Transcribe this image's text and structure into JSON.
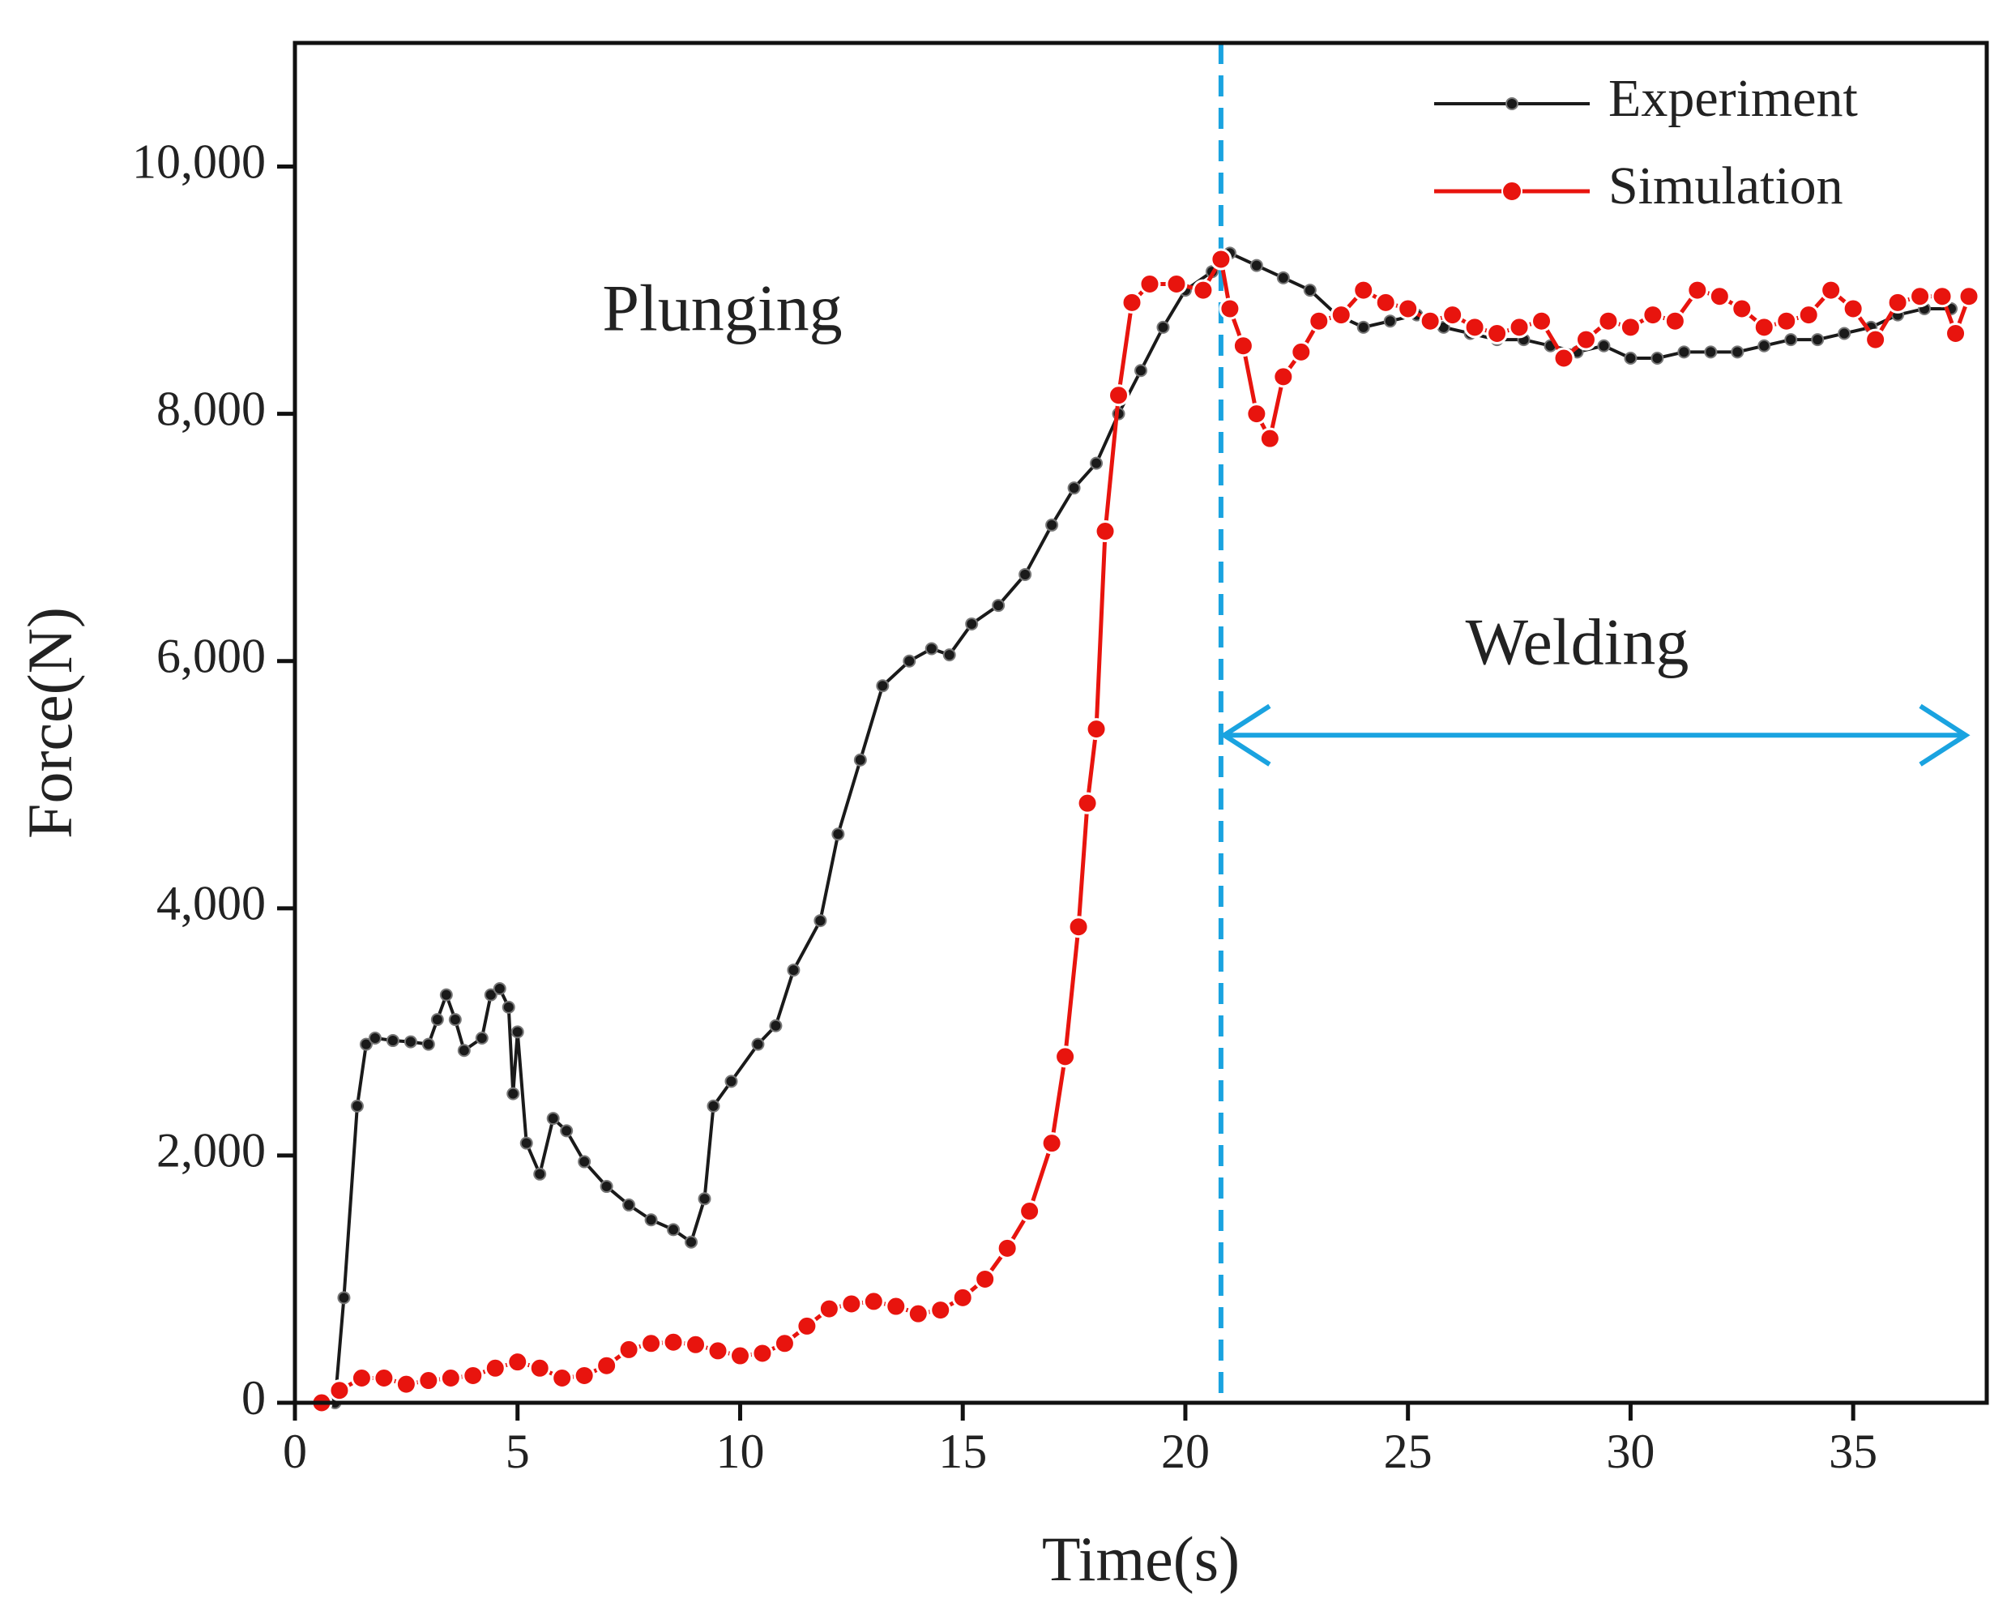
{
  "chart_data": {
    "type": "line",
    "xlabel": "Time(s)",
    "ylabel": "Force(N)",
    "xlim": [
      0,
      38
    ],
    "ylim": [
      0,
      11000
    ],
    "xticks": [
      0,
      5,
      10,
      15,
      20,
      25,
      30,
      35
    ],
    "yticks": [
      0,
      {
        "value": 2000,
        "label": "2,000"
      },
      {
        "value": 4000,
        "label": "4,000"
      },
      {
        "value": 6000,
        "label": "6,000"
      },
      {
        "value": 8000,
        "label": "8,000"
      },
      {
        "value": 10000,
        "label": "10,000"
      }
    ],
    "legend": "upper right",
    "annotations": [
      {
        "text": "Plunging",
        "x": 9.6,
        "y": 8800
      },
      {
        "text": "Welding",
        "x": 28.8,
        "y": 6100
      }
    ],
    "vline": {
      "x": 20.8,
      "color": "#1aa3e0"
    },
    "arrow": {
      "x": [
        20.8,
        37.6
      ],
      "y": 5400,
      "color": "#1aa3e0"
    },
    "series": [
      {
        "name": "Experiment",
        "color": "#1a1a1a",
        "x": [
          0.9,
          1.1,
          1.4,
          1.6,
          1.8,
          2.2,
          2.6,
          3.0,
          3.2,
          3.4,
          3.6,
          3.8,
          4.2,
          4.4,
          4.6,
          4.8,
          4.9,
          5.0,
          5.2,
          5.5,
          5.8,
          6.1,
          6.5,
          7.0,
          7.5,
          8.0,
          8.5,
          8.9,
          9.2,
          9.4,
          9.8,
          10.4,
          10.8,
          11.2,
          11.8,
          12.2,
          12.7,
          13.2,
          13.8,
          14.3,
          14.7,
          15.2,
          15.8,
          16.4,
          17.0,
          17.5,
          18.0,
          18.5,
          19.0,
          19.5,
          20.0,
          20.6,
          21.0,
          21.6,
          22.2,
          22.8,
          23.4,
          24.0,
          24.6,
          25.2,
          25.8,
          26.4,
          27.0,
          27.6,
          28.2,
          28.8,
          29.4,
          30.0,
          30.6,
          31.2,
          31.8,
          32.4,
          33.0,
          33.6,
          34.2,
          34.8,
          35.4,
          36.0,
          36.6,
          37.2
        ],
        "values": [
          0,
          850,
          2400,
          2900,
          2950,
          2930,
          2920,
          2900,
          3100,
          3300,
          3100,
          2850,
          2950,
          3300,
          3350,
          3200,
          2500,
          3000,
          2100,
          1850,
          2300,
          2200,
          1950,
          1750,
          1600,
          1480,
          1400,
          1300,
          1650,
          2400,
          2600,
          2900,
          3050,
          3500,
          3900,
          4600,
          5200,
          5800,
          6000,
          6100,
          6050,
          6300,
          6450,
          6700,
          7100,
          7400,
          7600,
          8000,
          8350,
          8700,
          9000,
          9150,
          9300,
          9200,
          9100,
          9000,
          8800,
          8700,
          8750,
          8800,
          8700,
          8650,
          8600,
          8600,
          8550,
          8500,
          8550,
          8450,
          8450,
          8500,
          8500,
          8500,
          8550,
          8600,
          8600,
          8650,
          8700,
          8800,
          8850,
          8850
        ]
      },
      {
        "name": "Simulation",
        "color": "#e8140e",
        "x": [
          0.6,
          1.0,
          1.5,
          2.0,
          2.5,
          3.0,
          3.5,
          4.0,
          4.5,
          5.0,
          5.5,
          6.0,
          6.5,
          7.0,
          7.5,
          8.0,
          8.5,
          9.0,
          9.5,
          10.0,
          10.5,
          11.0,
          11.5,
          12.0,
          12.5,
          13.0,
          13.5,
          14.0,
          14.5,
          15.0,
          15.5,
          16.0,
          16.5,
          17.0,
          17.3,
          17.6,
          17.8,
          18.0,
          18.2,
          18.5,
          18.8,
          19.2,
          19.8,
          20.4,
          20.8,
          21.0,
          21.3,
          21.6,
          21.9,
          22.2,
          22.6,
          23.0,
          23.5,
          24.0,
          24.5,
          25.0,
          25.5,
          26.0,
          26.5,
          27.0,
          27.5,
          28.0,
          28.5,
          29.0,
          29.5,
          30.0,
          30.5,
          31.0,
          31.5,
          32.0,
          32.5,
          33.0,
          33.5,
          34.0,
          34.5,
          35.0,
          35.5,
          36.0,
          36.5,
          37.0,
          37.3,
          37.6
        ],
        "values": [
          0,
          100,
          200,
          200,
          150,
          180,
          200,
          220,
          280,
          330,
          280,
          200,
          220,
          300,
          430,
          480,
          490,
          470,
          420,
          380,
          400,
          480,
          620,
          760,
          800,
          820,
          780,
          720,
          750,
          850,
          1000,
          1250,
          1550,
          2100,
          2800,
          3850,
          4850,
          5450,
          7050,
          8150,
          8900,
          9050,
          9050,
          9000,
          9250,
          8850,
          8550,
          8000,
          7800,
          8300,
          8500,
          8750,
          8800,
          9000,
          8900,
          8850,
          8750,
          8800,
          8700,
          8650,
          8700,
          8750,
          8450,
          8600,
          8750,
          8700,
          8800,
          8750,
          9000,
          8950,
          8850,
          8700,
          8750,
          8800,
          9000,
          8850,
          8600,
          8900,
          8950,
          8950,
          8650,
          8950
        ]
      }
    ]
  }
}
